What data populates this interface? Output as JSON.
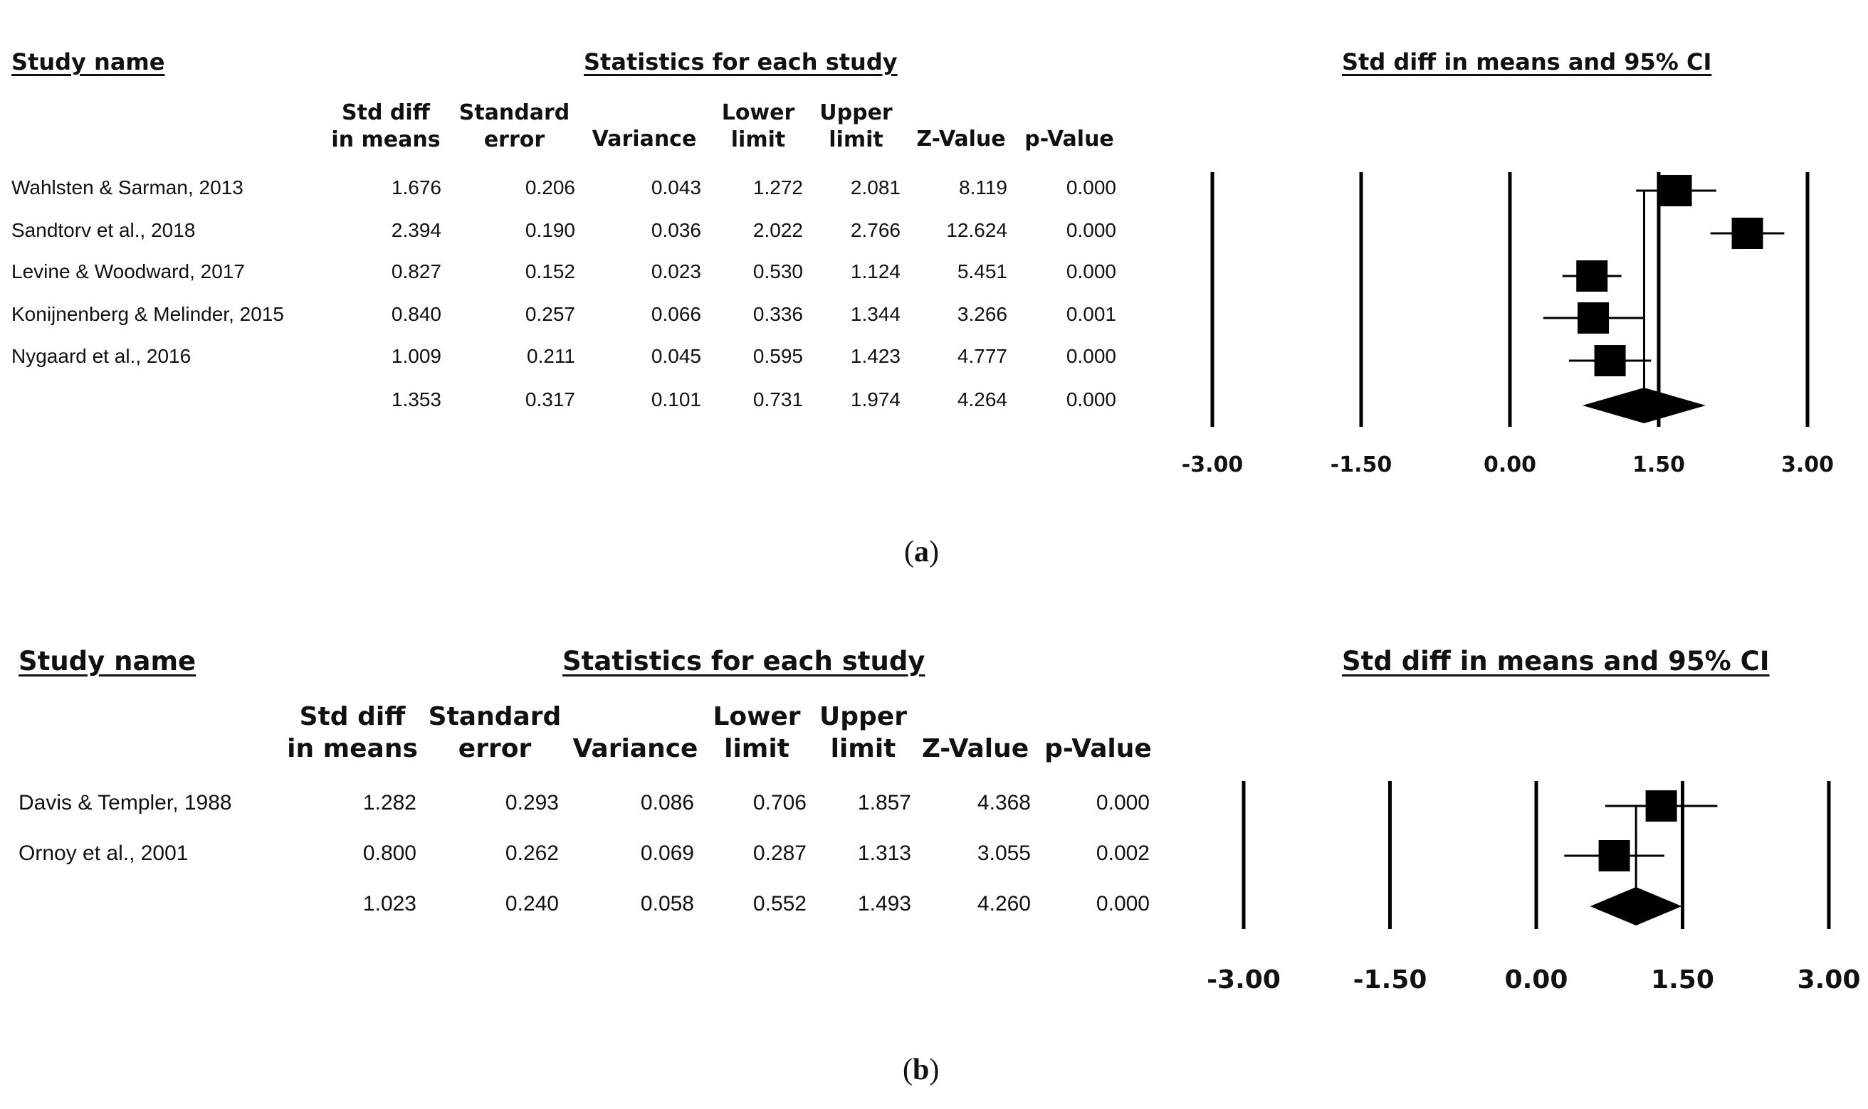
{
  "panels": [
    {
      "id": "a",
      "label_prefix": "(",
      "label_letter": "a",
      "label_suffix": ")",
      "study_header": "Study name",
      "stats_header": "Statistics for each study",
      "plot_header": "Std diff in means and 95% CI",
      "columns": [
        [
          "Std diff",
          "in means"
        ],
        [
          "Standard",
          "error"
        ],
        [
          "",
          "Variance"
        ],
        [
          "Lower",
          "limit"
        ],
        [
          "Upper",
          "limit"
        ],
        [
          "",
          "Z-Value"
        ],
        [
          "",
          "p-Value"
        ]
      ],
      "rows": [
        {
          "study": "Wahlsten & Sarman, 2013",
          "values": [
            "1.676",
            "0.206",
            "0.043",
            "1.272",
            "2.081",
            "8.119",
            "0.000"
          ]
        },
        {
          "study": "Sandtorv et al., 2018",
          "values": [
            "2.394",
            "0.190",
            "0.036",
            "2.022",
            "2.766",
            "12.624",
            "0.000"
          ]
        },
        {
          "study": "Levine & Woodward, 2017",
          "values": [
            "0.827",
            "0.152",
            "0.023",
            "0.530",
            "1.124",
            "5.451",
            "0.000"
          ]
        },
        {
          "study": "Konijnenberg & Melinder, 2015",
          "values": [
            "0.840",
            "0.257",
            "0.066",
            "0.336",
            "1.344",
            "3.266",
            "0.001"
          ]
        },
        {
          "study": "Nygaard et al., 2016",
          "values": [
            "1.009",
            "0.211",
            "0.045",
            "0.595",
            "1.423",
            "4.777",
            "0.000"
          ]
        }
      ],
      "summary": {
        "study": "",
        "values": [
          "1.353",
          "0.317",
          "0.101",
          "0.731",
          "1.974",
          "4.264",
          "0.000"
        ]
      }
    },
    {
      "id": "b",
      "label_prefix": "(",
      "label_letter": "b",
      "label_suffix": ")",
      "study_header": "Study name",
      "stats_header": "Statistics for each study",
      "plot_header": "Std diff in means and 95% CI",
      "columns": [
        [
          "Std diff",
          "in means"
        ],
        [
          "Standard",
          "error"
        ],
        [
          "",
          "Variance"
        ],
        [
          "Lower",
          "limit"
        ],
        [
          "Upper",
          "limit"
        ],
        [
          "",
          "Z-Value"
        ],
        [
          "",
          "p-Value"
        ]
      ],
      "rows": [
        {
          "study": "Davis & Templer, 1988",
          "values": [
            "1.282",
            "0.293",
            "0.086",
            "0.706",
            "1.857",
            "4.368",
            "0.000"
          ]
        },
        {
          "study": "Ornoy et al., 2001",
          "values": [
            "0.800",
            "0.262",
            "0.069",
            "0.287",
            "1.313",
            "3.055",
            "0.002"
          ]
        }
      ],
      "summary": {
        "study": "",
        "values": [
          "1.023",
          "0.240",
          "0.058",
          "0.552",
          "1.493",
          "4.260",
          "0.000"
        ]
      }
    }
  ],
  "chart_data": [
    {
      "type": "forest",
      "panel": "a",
      "title": "Std diff in means and 95% CI",
      "xlim": [
        -3.0,
        3.0
      ],
      "ticks": [
        -3.0,
        -1.5,
        0.0,
        1.5,
        3.0
      ],
      "tick_labels": [
        "-3.00",
        "-1.50",
        "0.00",
        "1.50",
        "3.00"
      ],
      "studies": [
        {
          "name": "Wahlsten & Sarman, 2013",
          "estimate": 1.676,
          "lower": 1.272,
          "upper": 2.081
        },
        {
          "name": "Sandtorv et al., 2018",
          "estimate": 2.394,
          "lower": 2.022,
          "upper": 2.766
        },
        {
          "name": "Levine & Woodward, 2017",
          "estimate": 0.827,
          "lower": 0.53,
          "upper": 1.124
        },
        {
          "name": "Konijnenberg & Melinder, 2015",
          "estimate": 0.84,
          "lower": 0.336,
          "upper": 1.344
        },
        {
          "name": "Nygaard et al., 2016",
          "estimate": 1.009,
          "lower": 0.595,
          "upper": 1.423
        }
      ],
      "summary": {
        "estimate": 1.353,
        "lower": 0.731,
        "upper": 1.974
      }
    },
    {
      "type": "forest",
      "panel": "b",
      "title": "Std diff in means and 95% CI",
      "xlim": [
        -3.0,
        3.0
      ],
      "ticks": [
        -3.0,
        -1.5,
        0.0,
        1.5,
        3.0
      ],
      "tick_labels": [
        "-3.00",
        "-1.50",
        "0.00",
        "1.50",
        "3.00"
      ],
      "studies": [
        {
          "name": "Davis & Templer, 1988",
          "estimate": 1.282,
          "lower": 0.706,
          "upper": 1.857
        },
        {
          "name": "Ornoy et al., 2001",
          "estimate": 0.8,
          "lower": 0.287,
          "upper": 1.313
        }
      ],
      "summary": {
        "estimate": 1.023,
        "lower": 0.552,
        "upper": 1.493
      }
    }
  ]
}
